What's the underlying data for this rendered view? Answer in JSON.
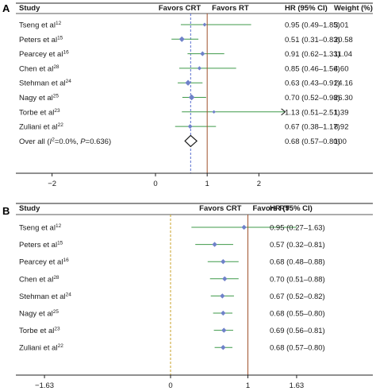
{
  "colors": {
    "ci_line": "#3f9a4a",
    "point": "#6f82c9",
    "ref_line": "#a0522d",
    "overall_dash": "#5a6fcf",
    "dash_b": "#c9a227",
    "pooled_diamond": "#1a1a1a"
  },
  "chart_data": [
    {
      "panel": "A",
      "type": "forest",
      "headers": {
        "study": "Study",
        "favors_left": "Favors CRT",
        "favors_right": "Favors RT",
        "hr": "HR (95% CI)",
        "weight": "Weight (%)"
      },
      "rows": [
        {
          "study": "Tseng et al",
          "ref": "12",
          "hr": 0.95,
          "lo": 0.49,
          "hi": 1.85,
          "hr_text": "0.95 (0.49–1.85)",
          "weight_text": "3.01",
          "weight": 3.01
        },
        {
          "study": "Peters et al",
          "ref": "15",
          "hr": 0.51,
          "lo": 0.31,
          "hi": 0.83,
          "hr_text": "0.51 (0.31–0.83)",
          "weight_text": "20.58",
          "weight": 20.58
        },
        {
          "study": "Pearcey et al",
          "ref": "16",
          "hr": 0.91,
          "lo": 0.62,
          "hi": 1.33,
          "hr_text": "0.91 (0.62–1.33)",
          "weight_text": "11.04",
          "weight": 11.04
        },
        {
          "study": "Chen et al",
          "ref": "28",
          "hr": 0.85,
          "lo": 0.46,
          "hi": 1.56,
          "hr_text": "0.85 (0.46–1.56)",
          "weight_text": "4.60",
          "weight": 4.6
        },
        {
          "study": "Stehman et al",
          "ref": "24",
          "hr": 0.63,
          "lo": 0.43,
          "hi": 0.91,
          "hr_text": "0.63 (0.43–0.91)",
          "weight_text": "24.16",
          "weight": 24.16
        },
        {
          "study": "Nagy et al",
          "ref": "25",
          "hr": 0.7,
          "lo": 0.52,
          "hi": 0.98,
          "hr_text": "0.70 (0.52–0.98)",
          "weight_text": "26.30",
          "weight": 26.3
        },
        {
          "study": "Torbe et al",
          "ref": "23",
          "hr": 1.13,
          "lo": 0.51,
          "hi": 2.51,
          "hr_text": "1.13 (0.51–2.51)",
          "weight_text": "1.39",
          "weight": 1.39,
          "arrow_right": true
        },
        {
          "study": "Zuliani et al",
          "ref": "22",
          "hr": 0.67,
          "lo": 0.38,
          "hi": 1.17,
          "hr_text": "0.67 (0.38–1.17)",
          "weight_text": "8.92",
          "weight": 8.92
        }
      ],
      "overall": {
        "label_prefix": "Over all (",
        "i2_symbol": "I",
        "i2_sup": "2",
        "label_suffix": "=0.0%, ",
        "p_symbol": "P",
        "p_suffix": "=0.636)",
        "hr": 0.68,
        "lo": 0.57,
        "hi": 0.8,
        "hr_text": "0.68 (0.57–0.80)",
        "weight_text": "100"
      },
      "xaxis": {
        "ticks": [
          -2,
          0,
          1,
          2
        ],
        "tick_labels": [
          "−2",
          "0",
          "1",
          "2"
        ],
        "range": [
          -2.7,
          2.7
        ]
      },
      "ref_value": 1,
      "overall_dash_value": 0.68
    },
    {
      "panel": "B",
      "type": "forest",
      "headers": {
        "study": "Study",
        "favors_left": "Favors CRT",
        "favors_right": "Favors RT",
        "hr": "HR (95% CI)"
      },
      "rows": [
        {
          "study": "Tseng et al",
          "ref": "12",
          "hr": 0.95,
          "lo": 0.27,
          "hi": 1.63,
          "hr_text": "0.95 (0.27–1.63)"
        },
        {
          "study": "Peters et al",
          "ref": "15",
          "hr": 0.57,
          "lo": 0.32,
          "hi": 0.81,
          "hr_text": "0.57 (0.32–0.81)"
        },
        {
          "study": "Pearcey et al",
          "ref": "16",
          "hr": 0.68,
          "lo": 0.48,
          "hi": 0.88,
          "hr_text": "0.68 (0.48–0.88)"
        },
        {
          "study": "Chen et al",
          "ref": "28",
          "hr": 0.7,
          "lo": 0.51,
          "hi": 0.88,
          "hr_text": "0.70 (0.51–0.88)"
        },
        {
          "study": "Stehman et al",
          "ref": "24",
          "hr": 0.67,
          "lo": 0.52,
          "hi": 0.82,
          "hr_text": "0.67 (0.52–0.82)"
        },
        {
          "study": "Nagy et al",
          "ref": "25",
          "hr": 0.68,
          "lo": 0.55,
          "hi": 0.8,
          "hr_text": "0.68 (0.55–0.80)"
        },
        {
          "study": "Torbe et al",
          "ref": "23",
          "hr": 0.69,
          "lo": 0.56,
          "hi": 0.81,
          "hr_text": "0.69 (0.56–0.81)"
        },
        {
          "study": "Zuliani et al",
          "ref": "22",
          "hr": 0.68,
          "lo": 0.57,
          "hi": 0.8,
          "hr_text": "0.68 (0.57–0.80)"
        }
      ],
      "xaxis": {
        "ticks": [
          -1.63,
          0,
          1,
          1.63
        ],
        "tick_labels": [
          "−1.63",
          "0",
          "1",
          "1.63"
        ],
        "range": [
          -2.0,
          2.0
        ]
      },
      "ref_value": 1,
      "zero_dash_value": 0
    }
  ]
}
